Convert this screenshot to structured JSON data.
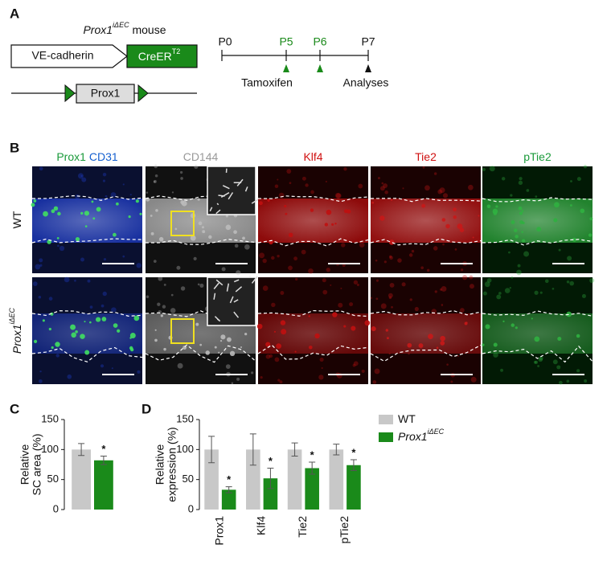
{
  "panel_a": {
    "letter": "A",
    "mouse_title": {
      "gene": "Prox1",
      "sup": "iΔEC",
      "suffix": " mouse"
    },
    "construct": {
      "promoter": "VE-cadherin",
      "cre": "CreER",
      "cre_sup": "T2",
      "floxed": "Prox1"
    },
    "timeline": {
      "days": [
        "P0",
        "P5",
        "P6",
        "P7"
      ],
      "tamoxifen": "Tamoxifen",
      "analyses": "Analyses"
    }
  },
  "panel_b": {
    "letter": "B",
    "columns": [
      {
        "parts": [
          "Prox1",
          "CD31"
        ]
      },
      {
        "parts": [
          "CD144"
        ]
      },
      {
        "parts": [
          "Klf4"
        ]
      },
      {
        "parts": [
          "Tie2"
        ]
      },
      {
        "parts": [
          "pTie2"
        ]
      }
    ],
    "rows": [
      {
        "gene": "WT",
        "sup": null
      },
      {
        "gene": "Prox1",
        "sup": "iΔEC"
      }
    ]
  },
  "chart_data": [
    {
      "type": "bar",
      "letter": "C",
      "ylabel": [
        "Relative",
        "SC area (%)"
      ],
      "categories": [
        null
      ],
      "ylim": [
        0,
        150
      ],
      "yticks": [
        0,
        50,
        100,
        150
      ],
      "series": [
        {
          "name": "WT",
          "name_sup": null,
          "color": "#c8c8c8",
          "values": [
            100
          ],
          "errors": [
            10
          ]
        },
        {
          "name": "Prox1",
          "name_sup": "iΔEC",
          "color": "#1a8a1a",
          "values": [
            82
          ],
          "errors": [
            7
          ],
          "significance": [
            "*"
          ]
        }
      ]
    },
    {
      "type": "bar",
      "letter": "D",
      "ylabel": [
        "Relative",
        "expression (%)"
      ],
      "categories": [
        "Prox1",
        "Klf4",
        "Tie2",
        "pTie2"
      ],
      "ylim": [
        0,
        150
      ],
      "yticks": [
        0,
        50,
        100,
        150
      ],
      "legend": "right",
      "series": [
        {
          "name": "WT",
          "name_sup": null,
          "color": "#c8c8c8",
          "values": [
            100,
            100,
            100,
            100
          ],
          "errors": [
            22,
            26,
            11,
            9
          ]
        },
        {
          "name": "Prox1",
          "name_sup": "iΔEC",
          "color": "#1a8a1a",
          "values": [
            33,
            52,
            69,
            74
          ],
          "errors": [
            5,
            17,
            10,
            9
          ],
          "significance": [
            "*",
            "*",
            "*",
            "*"
          ]
        }
      ]
    }
  ]
}
